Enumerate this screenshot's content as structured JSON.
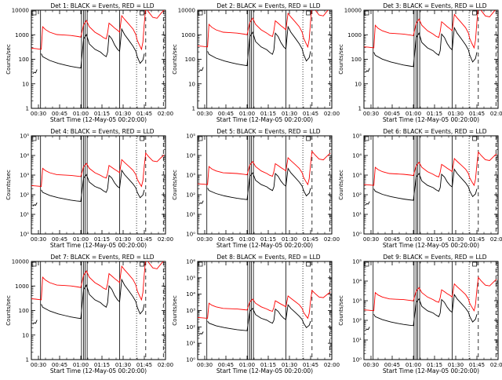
{
  "chart_data": [
    {
      "type": "line",
      "title": "Det 1:  BLACK = Events, RED = LLD",
      "xlabel": "Start Time (12-May-05 00:20:00)",
      "ylabel": "Counts/sec",
      "yscale": "log",
      "ylim": [
        1,
        10000
      ],
      "ytick_labels": [
        "1",
        "10",
        "100",
        "1000",
        "10000"
      ],
      "xtick_labels": [
        "00:30",
        "00:45",
        "01:00",
        "01:15",
        "01:30",
        "01:45",
        "02:00"
      ]
    },
    {
      "type": "line",
      "title": "Det 2:  BLACK = Events, RED = LLD",
      "xlabel": "Start Time (12-May-05 00:20:00)",
      "ylabel": "Counts/sec",
      "yscale": "log",
      "ylim": [
        1,
        10000
      ],
      "ytick_labels": [
        "1",
        "10",
        "100",
        "1000",
        "10000"
      ],
      "xtick_labels": [
        "00:30",
        "00:45",
        "01:00",
        "01:15",
        "01:30",
        "01:45",
        "02:00"
      ]
    },
    {
      "type": "line",
      "title": "Det 3:  BLACK = Events, RED = LLD",
      "xlabel": "Start Time (12-May-05 00:20:00)",
      "ylabel": "Counts/sec",
      "yscale": "log",
      "ylim": [
        1,
        10000
      ],
      "ytick_labels": [
        "1",
        "10",
        "100",
        "1000",
        "10000"
      ],
      "xtick_labels": [
        "00:30",
        "00:45",
        "01:00",
        "01:15",
        "01:30",
        "01:45",
        "02:00"
      ]
    },
    {
      "type": "line",
      "title": "Det 4:  BLACK = Events, RED = LLD",
      "xlabel": "Start Time (12-May-05 00:20:00)",
      "ylabel": "Counts/sec",
      "yscale": "log",
      "ylim": [
        1,
        100000
      ],
      "ytick_labels": [
        "10⁰",
        "10¹",
        "10²",
        "10³",
        "10⁴",
        "10⁵"
      ],
      "xtick_labels": [
        "00:30",
        "00:45",
        "01:00",
        "01:15",
        "01:30",
        "01:45",
        "02:00"
      ]
    },
    {
      "type": "line",
      "title": "Det 5:  BLACK = Events, RED = LLD",
      "xlabel": "Start Time (12-May-05 00:20:00)",
      "ylabel": "Counts/sec",
      "yscale": "log",
      "ylim": [
        1,
        100000
      ],
      "ytick_labels": [
        "10⁰",
        "10¹",
        "10²",
        "10³",
        "10⁴",
        "10⁵"
      ],
      "xtick_labels": [
        "00:30",
        "00:45",
        "01:00",
        "01:15",
        "01:30",
        "01:45",
        "02:00"
      ]
    },
    {
      "type": "line",
      "title": "Det 6:  BLACK = Events, RED = LLD",
      "xlabel": "Start Time (12-May-05 00:20:00)",
      "ylabel": "Counts/sec",
      "yscale": "log",
      "ylim": [
        1,
        100000
      ],
      "ytick_labels": [
        "10⁰",
        "10¹",
        "10²",
        "10³",
        "10⁴",
        "10⁵"
      ],
      "xtick_labels": [
        "00:30",
        "00:45",
        "01:00",
        "01:15",
        "01:30",
        "01:45",
        "02:00"
      ]
    },
    {
      "type": "line",
      "title": "Det 7:  BLACK = Events, RED = LLD",
      "xlabel": "Start Time (12-May-05 00:20:00)",
      "ylabel": "Counts/sec",
      "yscale": "log",
      "ylim": [
        1,
        10000
      ],
      "ytick_labels": [
        "1",
        "10",
        "100",
        "1000",
        "10000"
      ],
      "xtick_labels": [
        "00:30",
        "00:45",
        "01:00",
        "01:15",
        "01:30",
        "01:45",
        "02:00"
      ]
    },
    {
      "type": "line",
      "title": "Det 8:  BLACK = Events, RED = LLD",
      "xlabel": "Start Time (12-May-05 00:20:00)",
      "ylabel": "Counts/sec",
      "yscale": "log",
      "ylim": [
        1,
        1000000
      ],
      "ytick_labels": [
        "10⁰",
        "10¹",
        "10²",
        "10³",
        "10⁴",
        "10⁵",
        "10⁶"
      ],
      "xtick_labels": [
        "00:30",
        "00:45",
        "01:00",
        "01:15",
        "01:30",
        "01:45",
        "02:00"
      ]
    },
    {
      "type": "line",
      "title": "Det 9:  BLACK = Events, RED = LLD",
      "xlabel": "Start Time (12-May-05 00:20:00)",
      "ylabel": "Counts/sec",
      "yscale": "log",
      "ylim": [
        1,
        100000
      ],
      "ytick_labels": [
        "10⁰",
        "10¹",
        "10²",
        "10³",
        "10⁴",
        "10⁵"
      ],
      "xtick_labels": [
        "00:30",
        "00:45",
        "01:00",
        "01:15",
        "01:30",
        "01:45",
        "02:00"
      ]
    }
  ],
  "time_axis": {
    "start_min": 25,
    "end_min": 120
  },
  "series_colors": {
    "events": "#000000",
    "lld": "#ff0000"
  },
  "markers": {
    "solid": [
      31.5,
      60.5,
      62,
      63,
      64.5,
      87.5
    ],
    "dotted": [
      99.5
    ],
    "dashed": [
      106,
      118.5
    ]
  },
  "series_shape": {
    "events": [
      [
        32,
        200
      ],
      [
        33,
        150
      ],
      [
        38,
        105
      ],
      [
        44,
        80
      ],
      [
        49,
        68
      ],
      [
        53,
        60
      ],
      [
        57,
        55
      ],
      [
        60,
        52
      ],
      [
        62,
        800
      ],
      [
        64,
        1200
      ],
      [
        66,
        500
      ],
      [
        70,
        300
      ],
      [
        74,
        230
      ],
      [
        76,
        180
      ],
      [
        78,
        150
      ],
      [
        79,
        230
      ],
      [
        80,
        1100
      ],
      [
        82,
        800
      ],
      [
        84,
        450
      ],
      [
        86,
        300
      ],
      [
        87.5,
        250
      ],
      [
        89,
        2000
      ],
      [
        91,
        1200
      ],
      [
        94,
        700
      ],
      [
        97,
        400
      ],
      [
        99,
        250
      ],
      [
        100,
        150
      ],
      [
        102,
        80
      ],
      [
        104,
        110
      ],
      [
        105,
        200
      ]
    ],
    "events_stub": [
      [
        26,
        30
      ],
      [
        27,
        35
      ],
      [
        28,
        33
      ],
      [
        29,
        45
      ]
    ],
    "lld": [
      [
        25,
        330
      ],
      [
        28,
        320
      ],
      [
        32,
        300
      ],
      [
        33,
        2500
      ],
      [
        35,
        1900
      ],
      [
        38,
        1500
      ],
      [
        43,
        1200
      ],
      [
        48,
        1150
      ],
      [
        53,
        1100
      ],
      [
        58,
        1000
      ],
      [
        60,
        950
      ],
      [
        62,
        3000
      ],
      [
        64,
        4500
      ],
      [
        66,
        2500
      ],
      [
        70,
        1500
      ],
      [
        74,
        1100
      ],
      [
        76,
        900
      ],
      [
        78,
        800
      ],
      [
        79,
        1400
      ],
      [
        80,
        3500
      ],
      [
        82,
        2800
      ],
      [
        84,
        2200
      ],
      [
        86,
        1800
      ],
      [
        87.5,
        1500
      ],
      [
        89,
        7000
      ],
      [
        91,
        5000
      ],
      [
        94,
        3200
      ],
      [
        97,
        2000
      ],
      [
        99,
        1200
      ],
      [
        100,
        700
      ],
      [
        101.5,
        450
      ],
      [
        103,
        300
      ],
      [
        104,
        600
      ],
      [
        105,
        3500
      ],
      [
        106,
        15000
      ],
      [
        108,
        10000
      ],
      [
        111,
        6000
      ],
      [
        114,
        5500
      ],
      [
        117,
        9000
      ],
      [
        119,
        12000
      ]
    ]
  }
}
